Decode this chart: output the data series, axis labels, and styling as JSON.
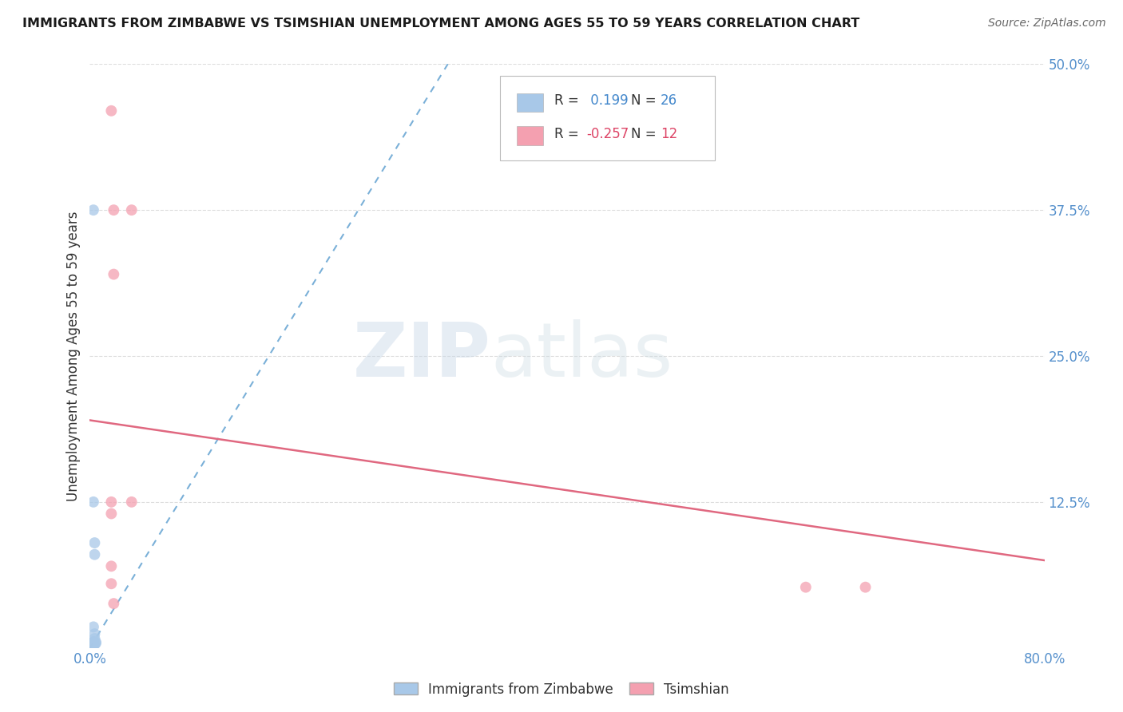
{
  "title": "IMMIGRANTS FROM ZIMBABWE VS TSIMSHIAN UNEMPLOYMENT AMONG AGES 55 TO 59 YEARS CORRELATION CHART",
  "source": "Source: ZipAtlas.com",
  "ylabel": "Unemployment Among Ages 55 to 59 years",
  "xlim": [
    0,
    0.8
  ],
  "ylim": [
    0,
    0.5
  ],
  "yticks": [
    0.0,
    0.125,
    0.25,
    0.375,
    0.5
  ],
  "ytick_labels": [
    "",
    "12.5%",
    "25.0%",
    "37.5%",
    "50.0%"
  ],
  "xticks": [
    0.0,
    0.1,
    0.2,
    0.3,
    0.4,
    0.5,
    0.6,
    0.7,
    0.8
  ],
  "xtick_labels": [
    "0.0%",
    "",
    "",
    "",
    "",
    "",
    "",
    "",
    "80.0%"
  ],
  "blue_scatter_x": [
    0.003,
    0.005,
    0.004,
    0.003,
    0.004,
    0.003,
    0.003,
    0.004,
    0.003,
    0.003,
    0.004,
    0.005,
    0.003,
    0.003,
    0.003,
    0.003,
    0.003,
    0.003,
    0.003,
    0.003,
    0.003,
    0.003,
    0.003,
    0.003,
    0.004,
    0.003
  ],
  "blue_scatter_y": [
    0.375,
    0.005,
    0.09,
    0.125,
    0.08,
    0.005,
    0.005,
    0.012,
    0.018,
    0.005,
    0.008,
    0.004,
    0.004,
    0.004,
    0.004,
    0.004,
    0.004,
    0.004,
    0.003,
    0.004,
    0.003,
    0.003,
    0.003,
    0.003,
    0.003,
    0.003
  ],
  "pink_scatter_x": [
    0.018,
    0.035,
    0.02,
    0.02,
    0.018,
    0.035,
    0.018,
    0.018,
    0.018,
    0.6,
    0.65,
    0.02
  ],
  "pink_scatter_y": [
    0.46,
    0.375,
    0.375,
    0.32,
    0.125,
    0.125,
    0.115,
    0.07,
    0.055,
    0.052,
    0.052,
    0.038
  ],
  "blue_R": 0.199,
  "blue_N": 26,
  "pink_R": -0.257,
  "pink_N": 12,
  "blue_trend_x": [
    0.0,
    0.3
  ],
  "blue_trend_y": [
    0.0,
    0.5
  ],
  "pink_trend_x": [
    0.0,
    0.8
  ],
  "pink_trend_y": [
    0.195,
    0.075
  ],
  "blue_color": "#a8c8e8",
  "blue_line_color": "#7ab0d8",
  "pink_color": "#f4a0b0",
  "pink_line_color": "#e06880",
  "scatter_size": 100,
  "watermark_zip": "ZIP",
  "watermark_atlas": "atlas",
  "legend_label_blue": "Immigrants from Zimbabwe",
  "legend_label_pink": "Tsimshian"
}
